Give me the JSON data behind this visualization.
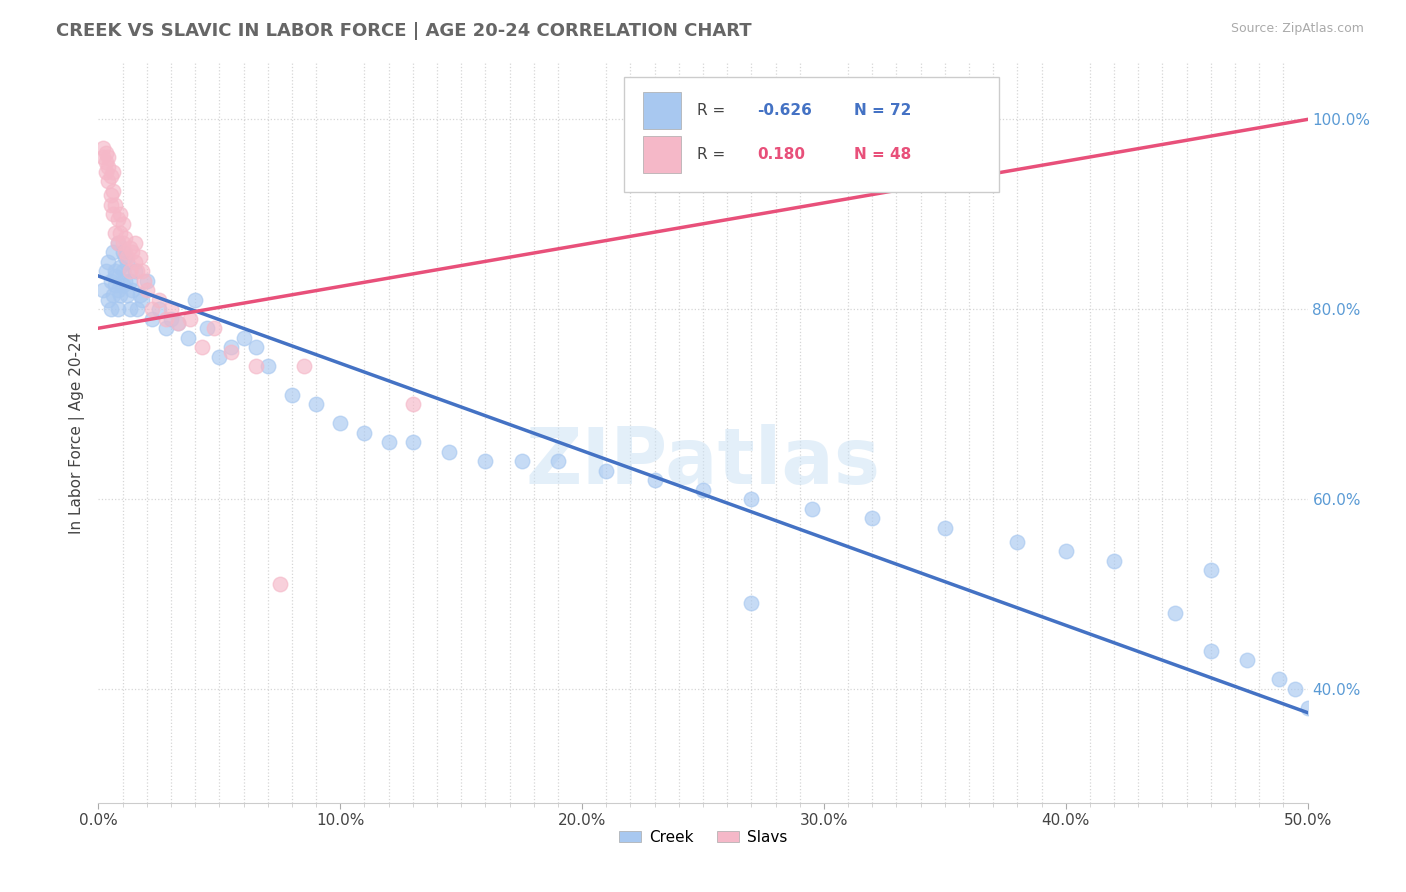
{
  "title": "CREEK VS SLAVIC IN LABOR FORCE | AGE 20-24 CORRELATION CHART",
  "source_text": "Source: ZipAtlas.com",
  "ylabel": "In Labor Force | Age 20-24",
  "xlim": [
    0.0,
    0.5
  ],
  "ylim": [
    0.28,
    1.06
  ],
  "xtick_labels": [
    "0.0%",
    "",
    "",
    "",
    "",
    "",
    "",
    "",
    "",
    "",
    "10.0%",
    "",
    "",
    "",
    "",
    "",
    "",
    "",
    "",
    "",
    "20.0%",
    "",
    "",
    "",
    "",
    "",
    "",
    "",
    "",
    "",
    "30.0%",
    "",
    "",
    "",
    "",
    "",
    "",
    "",
    "",
    "",
    "40.0%",
    "",
    "",
    "",
    "",
    "",
    "",
    "",
    "",
    "",
    "50.0%"
  ],
  "xtick_values": [
    0.0,
    0.01,
    0.02,
    0.03,
    0.04,
    0.05,
    0.06,
    0.07,
    0.08,
    0.09,
    0.1,
    0.11,
    0.12,
    0.13,
    0.14,
    0.15,
    0.16,
    0.17,
    0.18,
    0.19,
    0.2,
    0.21,
    0.22,
    0.23,
    0.24,
    0.25,
    0.26,
    0.27,
    0.28,
    0.29,
    0.3,
    0.31,
    0.32,
    0.33,
    0.34,
    0.35,
    0.36,
    0.37,
    0.38,
    0.39,
    0.4,
    0.41,
    0.42,
    0.43,
    0.44,
    0.45,
    0.46,
    0.47,
    0.48,
    0.49,
    0.5
  ],
  "ytick_labels": [
    "40.0%",
    "60.0%",
    "80.0%",
    "100.0%"
  ],
  "ytick_values": [
    0.4,
    0.6,
    0.8,
    1.0
  ],
  "creek_color": "#a8c8f0",
  "slavs_color": "#f5b8c8",
  "creek_line_color": "#4472c4",
  "slavs_line_color": "#e8507a",
  "legend_creek_label": "Creek",
  "legend_slavs_label": "Slavs",
  "creek_R": -0.626,
  "creek_N": 72,
  "slavs_R": 0.18,
  "slavs_N": 48,
  "watermark": "ZIPatlas",
  "creek_line_x0": 0.0,
  "creek_line_y0": 0.835,
  "creek_line_x1": 0.5,
  "creek_line_y1": 0.375,
  "slavs_line_x0": 0.0,
  "slavs_line_y0": 0.78,
  "slavs_line_x1": 0.5,
  "slavs_line_y1": 1.0,
  "creek_scatter_x": [
    0.002,
    0.003,
    0.004,
    0.004,
    0.005,
    0.005,
    0.006,
    0.006,
    0.007,
    0.007,
    0.007,
    0.008,
    0.008,
    0.008,
    0.009,
    0.009,
    0.01,
    0.01,
    0.01,
    0.011,
    0.011,
    0.012,
    0.012,
    0.013,
    0.013,
    0.014,
    0.015,
    0.016,
    0.017,
    0.018,
    0.02,
    0.022,
    0.025,
    0.028,
    0.03,
    0.033,
    0.037,
    0.04,
    0.045,
    0.05,
    0.055,
    0.06,
    0.065,
    0.07,
    0.08,
    0.09,
    0.1,
    0.11,
    0.12,
    0.13,
    0.145,
    0.16,
    0.175,
    0.19,
    0.21,
    0.23,
    0.25,
    0.27,
    0.295,
    0.32,
    0.35,
    0.38,
    0.4,
    0.42,
    0.445,
    0.46,
    0.475,
    0.488,
    0.495,
    0.5,
    0.27,
    0.46
  ],
  "creek_scatter_y": [
    0.82,
    0.84,
    0.81,
    0.85,
    0.8,
    0.83,
    0.86,
    0.815,
    0.84,
    0.825,
    0.835,
    0.82,
    0.87,
    0.8,
    0.845,
    0.815,
    0.84,
    0.86,
    0.825,
    0.855,
    0.83,
    0.85,
    0.815,
    0.8,
    0.83,
    0.82,
    0.84,
    0.8,
    0.815,
    0.81,
    0.83,
    0.79,
    0.8,
    0.78,
    0.79,
    0.785,
    0.77,
    0.81,
    0.78,
    0.75,
    0.76,
    0.77,
    0.76,
    0.74,
    0.71,
    0.7,
    0.68,
    0.67,
    0.66,
    0.66,
    0.65,
    0.64,
    0.64,
    0.64,
    0.63,
    0.62,
    0.61,
    0.6,
    0.59,
    0.58,
    0.57,
    0.555,
    0.545,
    0.535,
    0.48,
    0.44,
    0.43,
    0.41,
    0.4,
    0.38,
    0.49,
    0.525
  ],
  "slavs_scatter_x": [
    0.002,
    0.002,
    0.003,
    0.003,
    0.003,
    0.004,
    0.004,
    0.004,
    0.005,
    0.005,
    0.005,
    0.006,
    0.006,
    0.006,
    0.007,
    0.007,
    0.008,
    0.008,
    0.009,
    0.009,
    0.01,
    0.01,
    0.011,
    0.011,
    0.012,
    0.013,
    0.013,
    0.014,
    0.015,
    0.015,
    0.016,
    0.017,
    0.018,
    0.019,
    0.02,
    0.022,
    0.025,
    0.028,
    0.03,
    0.033,
    0.038,
    0.043,
    0.048,
    0.055,
    0.065,
    0.075,
    0.085,
    0.13
  ],
  "slavs_scatter_y": [
    0.96,
    0.97,
    0.945,
    0.965,
    0.955,
    0.935,
    0.95,
    0.96,
    0.92,
    0.94,
    0.91,
    0.9,
    0.925,
    0.945,
    0.88,
    0.91,
    0.87,
    0.895,
    0.88,
    0.9,
    0.87,
    0.89,
    0.86,
    0.875,
    0.855,
    0.865,
    0.84,
    0.86,
    0.85,
    0.87,
    0.84,
    0.855,
    0.84,
    0.83,
    0.82,
    0.8,
    0.81,
    0.79,
    0.8,
    0.785,
    0.79,
    0.76,
    0.78,
    0.755,
    0.74,
    0.51,
    0.74,
    0.7
  ]
}
